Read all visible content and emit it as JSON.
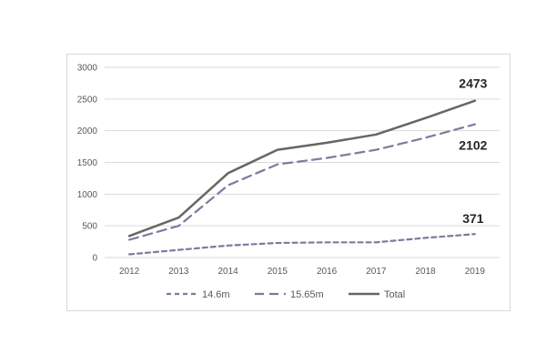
{
  "chart_data": {
    "type": "line",
    "title": "",
    "xlabel": "",
    "ylabel": "",
    "categories": [
      "2012",
      "2013",
      "2014",
      "2015",
      "2016",
      "2017",
      "2018",
      "2019"
    ],
    "ylim": [
      0,
      3000
    ],
    "yticks": [
      0,
      500,
      1000,
      1500,
      2000,
      2500,
      3000
    ],
    "grid": true,
    "legend_position": "bottom",
    "series": [
      {
        "name": "14.6m",
        "values": [
          50,
          120,
          190,
          230,
          240,
          240,
          310,
          371
        ],
        "color": "#7b7ba0",
        "style": "dashed"
      },
      {
        "name": "15.65m",
        "values": [
          280,
          500,
          1140,
          1470,
          1570,
          1700,
          1890,
          2102
        ],
        "color": "#7b7ba0",
        "style": "long-dashed"
      },
      {
        "name": "Total",
        "values": [
          340,
          630,
          1330,
          1700,
          1810,
          1940,
          2200,
          2473
        ],
        "color": "#666666",
        "style": "solid"
      }
    ],
    "data_labels": [
      {
        "series": "Total",
        "category": "2019",
        "text": "2473"
      },
      {
        "series": "15.65m",
        "category": "2019",
        "text": "2102"
      },
      {
        "series": "14.6m",
        "category": "2019",
        "text": "371"
      }
    ]
  }
}
